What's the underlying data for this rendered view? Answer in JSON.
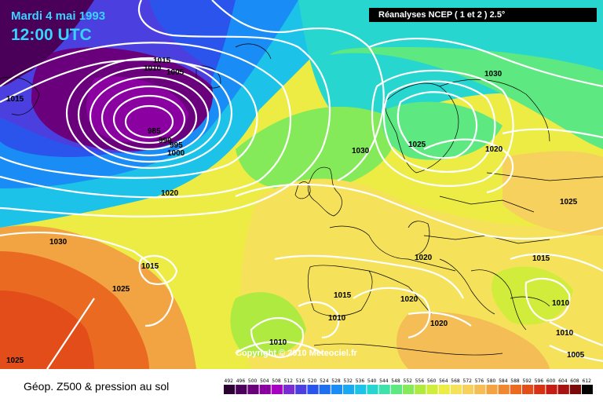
{
  "header": {
    "date": "Mardi 4 mai 1993",
    "time": "12:00 UTC",
    "source": "Réanalyses NCEP ( 1 et 2 ) 2.5°"
  },
  "copyright": "Copyright © 2010 Meteociel.fr",
  "footer": {
    "title": "Géop. Z500 & pression au sol"
  },
  "scale": {
    "labels": [
      "492",
      "496",
      "500",
      "504",
      "508",
      "512",
      "516",
      "520",
      "524",
      "528",
      "532",
      "536",
      "540",
      "544",
      "548",
      "552",
      "556",
      "560",
      "564",
      "568",
      "572",
      "576",
      "580",
      "584",
      "588",
      "592",
      "596",
      "600",
      "604",
      "608",
      "612"
    ],
    "colors": [
      "#2b0033",
      "#4a0059",
      "#6b007d",
      "#8a00a0",
      "#a800c0",
      "#7a2bd6",
      "#4b3fe0",
      "#2a54ec",
      "#1f6ff2",
      "#1a8cf5",
      "#19a8f2",
      "#1cc2e8",
      "#27d6cf",
      "#3ee2aa",
      "#5ee882",
      "#85ea5a",
      "#aeea3f",
      "#d1ec3a",
      "#ecec45",
      "#f5e25a",
      "#f7d15e",
      "#f5bd55",
      "#f2a342",
      "#ef8830",
      "#ea6a22",
      "#e24d1a",
      "#d63216",
      "#c41d14",
      "#a81211",
      "#7a0a0a",
      "#000000"
    ]
  },
  "isobar_labels": [
    "1015",
    "1010",
    "1005",
    "985",
    "990",
    "995",
    "1000",
    "1015",
    "1020",
    "1030",
    "1015",
    "1025",
    "1025",
    "1030",
    "1025",
    "1020",
    "1030",
    "1020",
    "1025",
    "1015",
    "1020",
    "1015",
    "1020",
    "1010",
    "1020",
    "1010",
    "1010",
    "1010",
    "1005",
    "1025"
  ]
}
